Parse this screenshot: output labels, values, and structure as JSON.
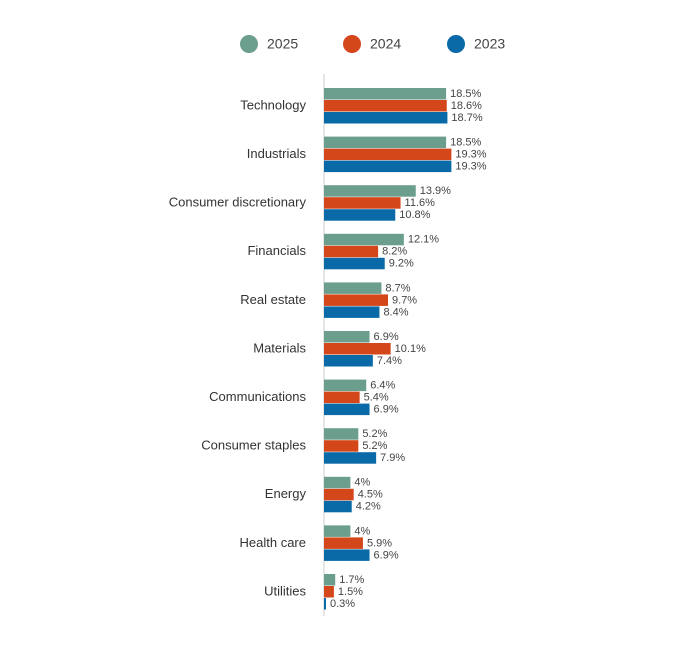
{
  "chart_data": {
    "type": "bar",
    "orientation": "horizontal",
    "categories": [
      "Technology",
      "Industrials",
      "Consumer discretionary",
      "Financials",
      "Real estate",
      "Materials",
      "Communications",
      "Consumer staples",
      "Energy",
      "Health care",
      "Utilities"
    ],
    "series": [
      {
        "name": "2025",
        "color": "#6b9e8c",
        "values": [
          18.5,
          18.5,
          13.9,
          12.1,
          8.7,
          6.9,
          6.4,
          5.2,
          4,
          4,
          1.7
        ],
        "value_labels": [
          "18.5%",
          "18.5%",
          "13.9%",
          "12.1%",
          "8.7%",
          "6.9%",
          "6.4%",
          "5.2%",
          "4%",
          "4%",
          "1.7%"
        ]
      },
      {
        "name": "2024",
        "color": "#d4471b",
        "values": [
          18.6,
          19.3,
          11.6,
          8.2,
          9.7,
          10.1,
          5.4,
          5.2,
          4.5,
          5.9,
          1.5
        ],
        "value_labels": [
          "18.6%",
          "19.3%",
          "11.6%",
          "8.2%",
          "9.7%",
          "10.1%",
          "5.4%",
          "5.2%",
          "4.5%",
          "5.9%",
          "1.5%"
        ]
      },
      {
        "name": "2023",
        "color": "#0a6aa8",
        "values": [
          18.7,
          19.3,
          10.8,
          9.2,
          8.4,
          7.4,
          6.9,
          7.9,
          4.2,
          6.9,
          0.3
        ],
        "value_labels": [
          "18.7%",
          "19.3%",
          "10.8%",
          "9.2%",
          "8.4%",
          "7.4%",
          "6.9%",
          "7.9%",
          "4.2%",
          "6.9%",
          "0.3%"
        ]
      }
    ],
    "legend": "top"
  }
}
